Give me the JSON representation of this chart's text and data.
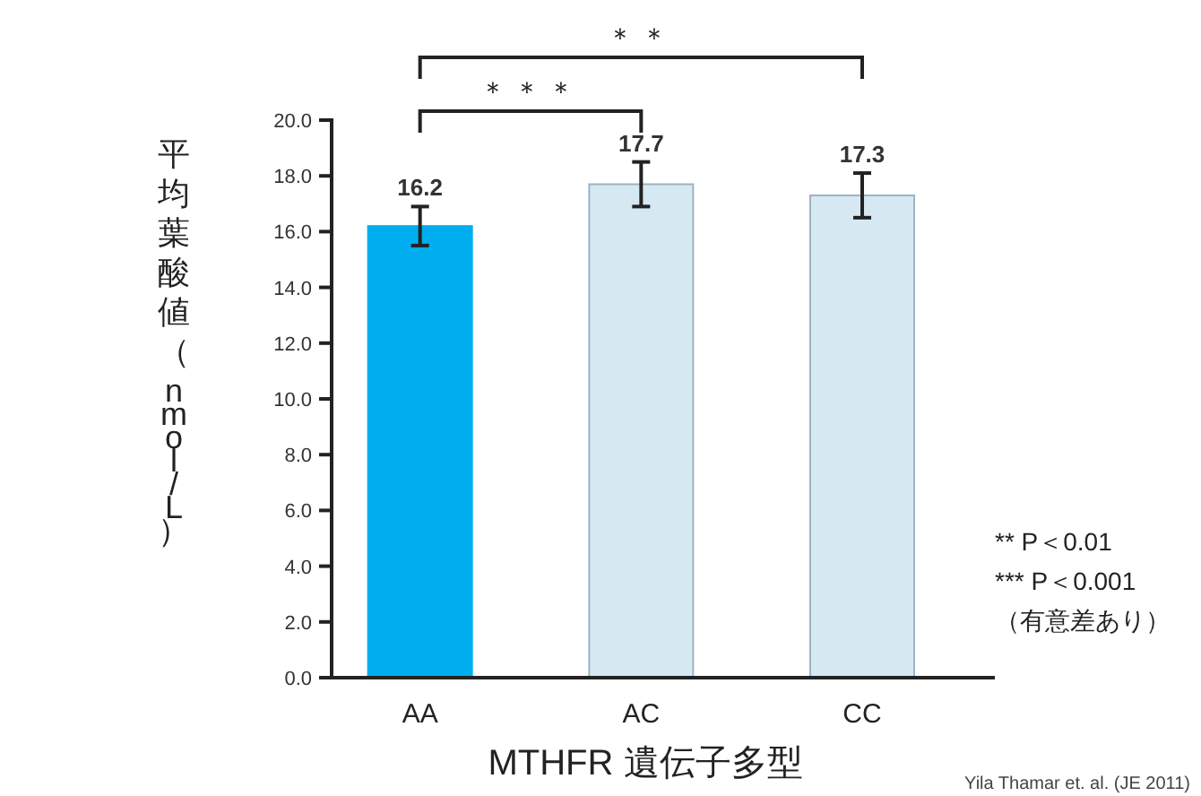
{
  "chart_data": {
    "type": "bar",
    "categories": [
      "AA",
      "AC",
      "CC"
    ],
    "values": [
      16.2,
      17.7,
      17.3
    ],
    "colors": [
      "#00aeef",
      "#d6e9f3",
      "#d6e9f3"
    ],
    "errors": [
      0.7,
      0.8,
      0.8
    ],
    "data_labels": true,
    "ylim": [
      0,
      20
    ],
    "yticks": [
      {
        "value": 0,
        "label": "0.0"
      },
      {
        "value": 2,
        "label": "2.0"
      },
      {
        "value": 4,
        "label": "4.0"
      },
      {
        "value": 6,
        "label": "6.0"
      },
      {
        "value": 8,
        "label": "8.0"
      },
      {
        "value": 10,
        "label": "10.0"
      },
      {
        "value": 12,
        "label": "12.0"
      },
      {
        "value": 14,
        "label": "14.0"
      },
      {
        "value": 16,
        "label": "16.0"
      },
      {
        "value": 18,
        "label": "18.0"
      },
      {
        "value": 20,
        "label": "20.0"
      }
    ],
    "xlabel": "MTHFR 遺伝子多型",
    "ylabel": "平均葉酸値（nmol/L）",
    "grid": false,
    "annotations": [
      "＊＊",
      "＊＊＊",
      "** P＜0.01",
      "*** P＜0.001",
      "（有意差あり）",
      "Yila Thamar et. al. (JE 2011)"
    ]
  }
}
